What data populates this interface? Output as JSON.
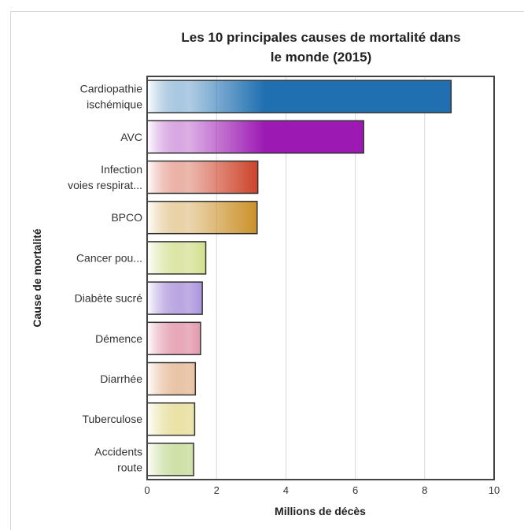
{
  "chart_data": {
    "type": "bar",
    "orientation": "horizontal",
    "title": [
      "Les 10 principales causes de mortalité dans",
      "le monde (2015)"
    ],
    "xlabel": "Millions de décès",
    "ylabel": "Cause de mortalité",
    "xlim": [
      0,
      10
    ],
    "xticks": [
      0,
      2,
      4,
      6,
      8,
      10
    ],
    "grid": "vertical",
    "categories": [
      [
        "Cardiopathie",
        "ischémique"
      ],
      [
        "AVC"
      ],
      [
        "Infection",
        "voies respirat..."
      ],
      [
        "BPCO"
      ],
      [
        "Cancer pou..."
      ],
      [
        "Diabète sucré"
      ],
      [
        "Démence"
      ],
      [
        "Diarrhée"
      ],
      [
        "Tuberculose"
      ],
      [
        "Accidents",
        "route"
      ]
    ],
    "values": [
      8.76,
      6.24,
      3.19,
      3.17,
      1.69,
      1.59,
      1.54,
      1.39,
      1.37,
      1.34
    ],
    "colors": [
      "#1f6fb1",
      "#9c1ab3",
      "#c9361b",
      "#c7891a",
      "#a6be1c",
      "#4b1ab4",
      "#bf1e4b",
      "#c7651a",
      "#c8b31a",
      "#7fb11f"
    ]
  }
}
